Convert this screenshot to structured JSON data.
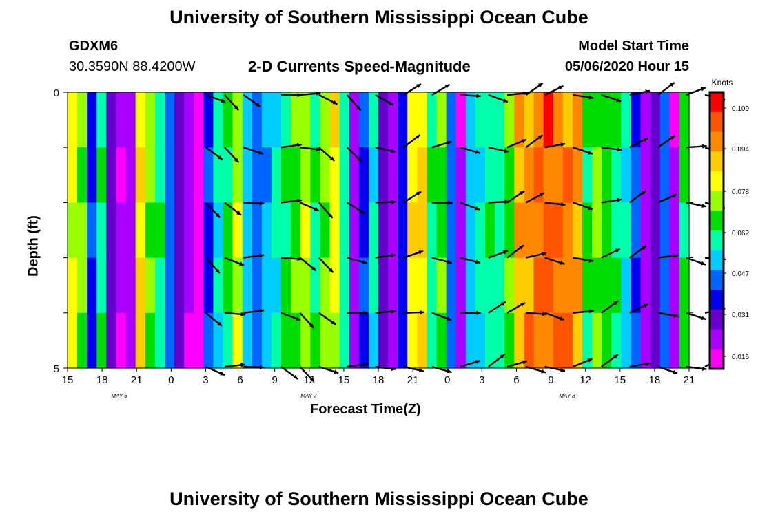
{
  "page": {
    "title_top": "University of Southern Mississippi Ocean Cube",
    "title_bottom": "University of Southern Mississippi Ocean Cube",
    "station_id": "GDXM6",
    "coords": "30.3590N 88.4200W",
    "plot_title": "2-D Currents Speed-Magnitude",
    "model_start_label": "Model Start Time",
    "model_start_value": "05/06/2020 Hour 15"
  },
  "chart_data": {
    "type": "heatmap",
    "title": "2-D Currents Speed-Magnitude",
    "xlabel": "Forecast Time(Z)",
    "ylabel": "Depth (ft)",
    "x_tick_labels": [
      "15",
      "18",
      "21",
      "0",
      "3",
      "6",
      "9",
      "12",
      "15",
      "18",
      "21",
      "0",
      "3",
      "6",
      "9",
      "12",
      "15",
      "18",
      "21"
    ],
    "date_labels": [
      "MAY 6",
      "MAY 7",
      "MAY 8"
    ],
    "y_tick_labels": [
      "0",
      "5"
    ],
    "ylim": [
      0,
      5
    ],
    "colorbar": {
      "unit": "Knots",
      "tick_labels": [
        "0.109",
        "0.094",
        "0.078",
        "0.062",
        "0.047",
        "0.031",
        "0.016"
      ],
      "colors": [
        "#ff0000",
        "#ff5500",
        "#ff8800",
        "#ffcc00",
        "#ffff00",
        "#99ff00",
        "#00dd00",
        "#00ffaa",
        "#00ccff",
        "#0066ff",
        "#0000ee",
        "#6600cc",
        "#aa00ff",
        "#ff00ff"
      ]
    },
    "speed_profile_knots_by_column": [
      0.078,
      0.07,
      0.04,
      0.06,
      0.03,
      0.02,
      0.025,
      0.085,
      0.07,
      0.06,
      0.045,
      0.03,
      0.02,
      0.015,
      0.04,
      0.055,
      0.065,
      0.075,
      0.05,
      0.045,
      0.05,
      0.055,
      0.062,
      0.07,
      0.075,
      0.06,
      0.07,
      0.08,
      0.058,
      0.02,
      0.04,
      0.055,
      0.03,
      0.025,
      0.035,
      0.08,
      0.085,
      0.06,
      0.068,
      0.045,
      0.02,
      0.05,
      0.055,
      0.06,
      0.058,
      0.07,
      0.09,
      0.094,
      0.096,
      0.1,
      0.098,
      0.094,
      0.09,
      0.062,
      0.07,
      0.065,
      0.06,
      0.055,
      0.04,
      0.025,
      0.03,
      0.045,
      0.02,
      0.065
    ],
    "arrows": {
      "depth_rows": 6,
      "time_steps": [
        16,
        18,
        20,
        24,
        26,
        28,
        31,
        34,
        37,
        40,
        43,
        46,
        48,
        50,
        52,
        55,
        58,
        61,
        64,
        67,
        69
      ]
    }
  }
}
